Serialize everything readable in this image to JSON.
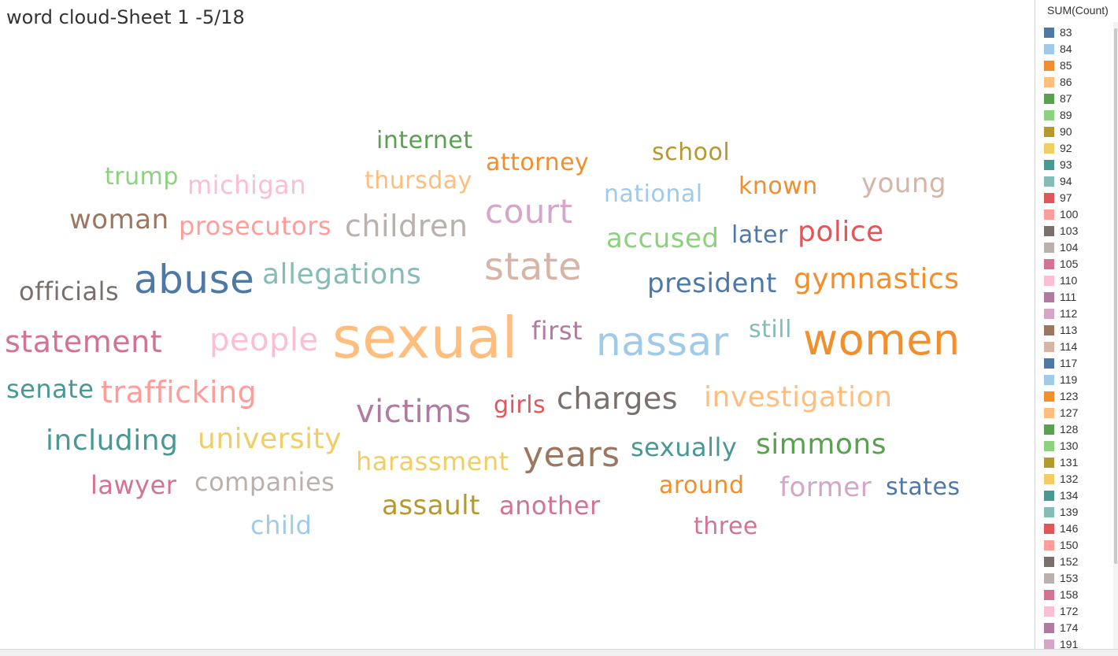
{
  "sheet_title": "word cloud-Sheet 1 -5/18",
  "legend": {
    "title": "SUM(Count)",
    "items": [
      {
        "label": "83",
        "color": "#4e79a7"
      },
      {
        "label": "84",
        "color": "#a0cbe8"
      },
      {
        "label": "85",
        "color": "#f28e2b"
      },
      {
        "label": "86",
        "color": "#ffbe7d"
      },
      {
        "label": "87",
        "color": "#59a14f"
      },
      {
        "label": "89",
        "color": "#8cd17d"
      },
      {
        "label": "90",
        "color": "#b6992d"
      },
      {
        "label": "92",
        "color": "#f1ce63"
      },
      {
        "label": "93",
        "color": "#499894"
      },
      {
        "label": "94",
        "color": "#86bcb6"
      },
      {
        "label": "97",
        "color": "#e15759"
      },
      {
        "label": "100",
        "color": "#ff9d9a"
      },
      {
        "label": "103",
        "color": "#79706e"
      },
      {
        "label": "104",
        "color": "#bab0ac"
      },
      {
        "label": "105",
        "color": "#d37295"
      },
      {
        "label": "110",
        "color": "#fabfd2"
      },
      {
        "label": "111",
        "color": "#b07aa1"
      },
      {
        "label": "112",
        "color": "#d4a6c8"
      },
      {
        "label": "113",
        "color": "#9d7660"
      },
      {
        "label": "114",
        "color": "#d7b5a6"
      },
      {
        "label": "117",
        "color": "#4e79a7"
      },
      {
        "label": "119",
        "color": "#a0cbe8"
      },
      {
        "label": "123",
        "color": "#f28e2b"
      },
      {
        "label": "127",
        "color": "#ffbe7d"
      },
      {
        "label": "128",
        "color": "#59a14f"
      },
      {
        "label": "130",
        "color": "#8cd17d"
      },
      {
        "label": "131",
        "color": "#b6992d"
      },
      {
        "label": "132",
        "color": "#f1ce63"
      },
      {
        "label": "134",
        "color": "#499894"
      },
      {
        "label": "139",
        "color": "#86bcb6"
      },
      {
        "label": "146",
        "color": "#e15759"
      },
      {
        "label": "150",
        "color": "#ff9d9a"
      },
      {
        "label": "152",
        "color": "#79706e"
      },
      {
        "label": "153",
        "color": "#bab0ac"
      },
      {
        "label": "158",
        "color": "#d37295"
      },
      {
        "label": "172",
        "color": "#fabfd2"
      },
      {
        "label": "174",
        "color": "#b07aa1"
      },
      {
        "label": "191",
        "color": "#d4a6c8"
      }
    ]
  },
  "chart_data": {
    "type": "word_cloud",
    "title": "word cloud-Sheet 1 -5/18",
    "size_measure": "SUM(Count)",
    "color_measure": "SUM(Count)",
    "words": [
      {
        "text": "sexual",
        "color": "#ffbe7d"
      },
      {
        "text": "women",
        "color": "#f28e2b"
      },
      {
        "text": "nassar",
        "color": "#a0cbe8"
      },
      {
        "text": "abuse",
        "color": "#4e79a7"
      },
      {
        "text": "state",
        "color": "#d7b5a6"
      },
      {
        "text": "years",
        "color": "#9d7660"
      },
      {
        "text": "court",
        "color": "#d4a6c8"
      },
      {
        "text": "victims",
        "color": "#b07aa1"
      },
      {
        "text": "people",
        "color": "#fabfd2"
      },
      {
        "text": "statement",
        "color": "#d37295"
      },
      {
        "text": "charges",
        "color": "#79706e"
      },
      {
        "text": "children",
        "color": "#bab0ac"
      },
      {
        "text": "trafficking",
        "color": "#ff9d9a"
      },
      {
        "text": "police",
        "color": "#e15759"
      },
      {
        "text": "allegations",
        "color": "#86bcb6"
      },
      {
        "text": "gymnastics",
        "color": "#f28e2b"
      },
      {
        "text": "investigation",
        "color": "#ffbe7d"
      },
      {
        "text": "including",
        "color": "#499894"
      },
      {
        "text": "university",
        "color": "#f1ce63"
      },
      {
        "text": "simmons",
        "color": "#59a14f"
      },
      {
        "text": "president",
        "color": "#4e79a7"
      },
      {
        "text": "accused",
        "color": "#8cd17d"
      },
      {
        "text": "assault",
        "color": "#b6992d"
      },
      {
        "text": "woman",
        "color": "#9d7660"
      },
      {
        "text": "young",
        "color": "#d7b5a6"
      },
      {
        "text": "former",
        "color": "#d4a6c8"
      },
      {
        "text": "prosecutors",
        "color": "#ff9d9a"
      },
      {
        "text": "harassment",
        "color": "#f1ce63"
      },
      {
        "text": "companies",
        "color": "#bab0ac"
      },
      {
        "text": "another",
        "color": "#d37295"
      },
      {
        "text": "sexually",
        "color": "#499894"
      },
      {
        "text": "officials",
        "color": "#79706e"
      },
      {
        "text": "senate",
        "color": "#499894"
      },
      {
        "text": "michigan",
        "color": "#fabfd2"
      },
      {
        "text": "first",
        "color": "#b07aa1"
      },
      {
        "text": "known",
        "color": "#f28e2b"
      },
      {
        "text": "attorney",
        "color": "#f28e2b"
      },
      {
        "text": "thursday",
        "color": "#ffbe7d"
      },
      {
        "text": "internet",
        "color": "#59a14f"
      },
      {
        "text": "national",
        "color": "#a0cbe8"
      },
      {
        "text": "states",
        "color": "#4e79a7"
      },
      {
        "text": "lawyer",
        "color": "#d37295"
      },
      {
        "text": "child",
        "color": "#a0cbe8"
      },
      {
        "text": "three",
        "color": "#d37295"
      },
      {
        "text": "girls",
        "color": "#e15759"
      },
      {
        "text": "around",
        "color": "#f28e2b"
      },
      {
        "text": "school",
        "color": "#b6992d"
      },
      {
        "text": "trump",
        "color": "#8cd17d"
      },
      {
        "text": "later",
        "color": "#4e79a7"
      },
      {
        "text": "still",
        "color": "#86bcb6"
      }
    ]
  }
}
